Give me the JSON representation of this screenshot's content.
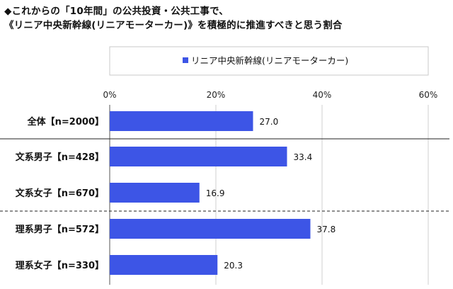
{
  "title_line1": "◆これからの「10年間」の公共投資・公共工事で、",
  "title_line2": "《リニア中央新幹線(リニアモーターカー)》を積極的に推進すべきと思う割合",
  "chart_data": {
    "type": "bar",
    "orientation": "horizontal",
    "categories": [
      "全体【n=2000】",
      "文系男子【n=428】",
      "文系女子【n=670】",
      "理系男子【n=572】",
      "理系女子【n=330】"
    ],
    "series": [
      {
        "name": "リニア中央新幹線(リニアモーターカー)",
        "values": [
          27.0,
          33.4,
          16.9,
          37.8,
          20.3
        ],
        "color": "#3d55e6"
      }
    ],
    "value_labels": [
      "27.0",
      "33.4",
      "16.9",
      "37.8",
      "20.3"
    ],
    "xlim": [
      0,
      60
    ],
    "x_ticks": [
      "0%",
      "20%",
      "40%",
      "60%"
    ],
    "gridlines": "vertical",
    "legend": "top",
    "group_separators": [
      "solid",
      "dashed"
    ]
  }
}
